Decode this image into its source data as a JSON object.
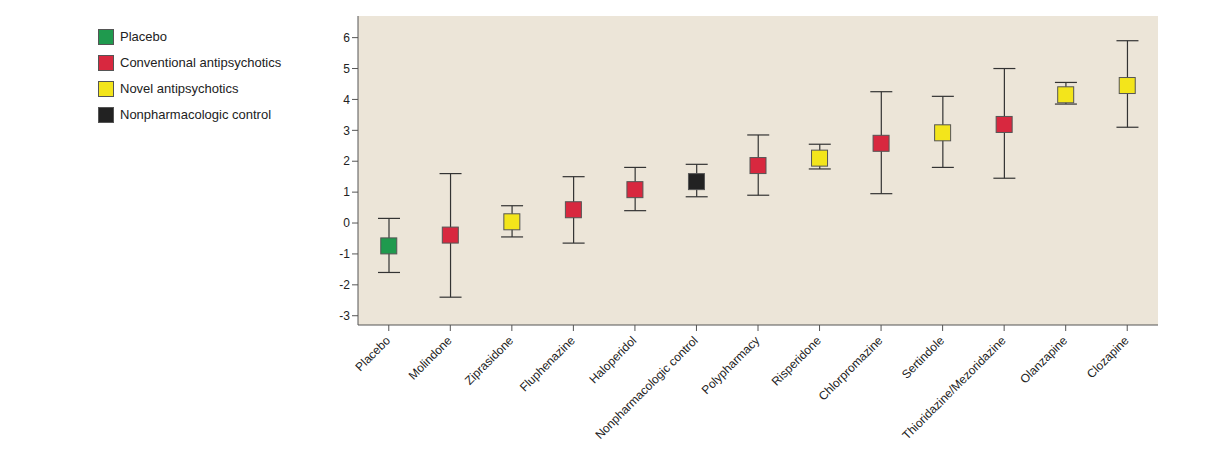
{
  "chart_data": {
    "type": "dot_errorbar",
    "categories": [
      "Placebo",
      "Molindone",
      "Ziprasidone",
      "Fluphenazine",
      "Haloperidol",
      "Nonpharmacologic control",
      "Polypharmacy",
      "Risperidone",
      "Chlorpromazine",
      "Sertindole",
      "Thioridazine/Mezoridazine",
      "Olanzapine",
      "Clozapine"
    ],
    "series": [
      {
        "name": "Placebo",
        "color": "#1f9a4e",
        "values": [
          -0.74,
          null,
          null,
          null,
          null,
          null,
          null,
          null,
          null,
          null,
          null,
          null,
          null
        ],
        "lower": [
          -1.6,
          null,
          null,
          null,
          null,
          null,
          null,
          null,
          null,
          null,
          null,
          null,
          null
        ],
        "upper": [
          0.15,
          null,
          null,
          null,
          null,
          null,
          null,
          null,
          null,
          null,
          null,
          null,
          null
        ]
      },
      {
        "name": "Conventional antipsychotics",
        "color": "#d8283f",
        "values": [
          null,
          -0.39,
          null,
          0.43,
          1.08,
          null,
          1.86,
          null,
          2.58,
          null,
          3.19,
          null,
          null
        ],
        "lower": [
          null,
          -2.4,
          null,
          -0.65,
          0.4,
          null,
          0.9,
          null,
          0.95,
          null,
          1.45,
          null,
          null
        ],
        "upper": [
          null,
          1.6,
          null,
          1.5,
          1.8,
          null,
          2.85,
          null,
          4.25,
          null,
          5.0,
          null,
          null
        ]
      },
      {
        "name": "Novel antipsychotics",
        "color": "#f3e51b",
        "values": [
          null,
          null,
          0.04,
          null,
          null,
          null,
          null,
          2.1,
          null,
          2.92,
          null,
          4.15,
          4.45
        ],
        "lower": [
          null,
          null,
          -0.45,
          null,
          null,
          null,
          null,
          1.75,
          null,
          1.8,
          null,
          3.85,
          3.1
        ],
        "upper": [
          null,
          null,
          0.56,
          null,
          null,
          null,
          null,
          2.55,
          null,
          4.1,
          null,
          4.55,
          5.9
        ]
      },
      {
        "name": "Nonpharmacologic control",
        "color": "#222222",
        "values": [
          null,
          null,
          null,
          null,
          null,
          1.34,
          null,
          null,
          null,
          null,
          null,
          null,
          null
        ],
        "lower": [
          null,
          null,
          null,
          null,
          null,
          0.85,
          null,
          null,
          null,
          null,
          null,
          null,
          null
        ],
        "upper": [
          null,
          null,
          null,
          null,
          null,
          1.9,
          null,
          null,
          null,
          null,
          null,
          null,
          null
        ]
      }
    ],
    "ylim": [
      -3.3,
      6.7
    ],
    "yticks": [
      -3,
      -2,
      -1,
      0,
      1,
      2,
      3,
      4,
      5,
      6
    ],
    "grid": false,
    "legend": "upper left",
    "marker": "square"
  }
}
